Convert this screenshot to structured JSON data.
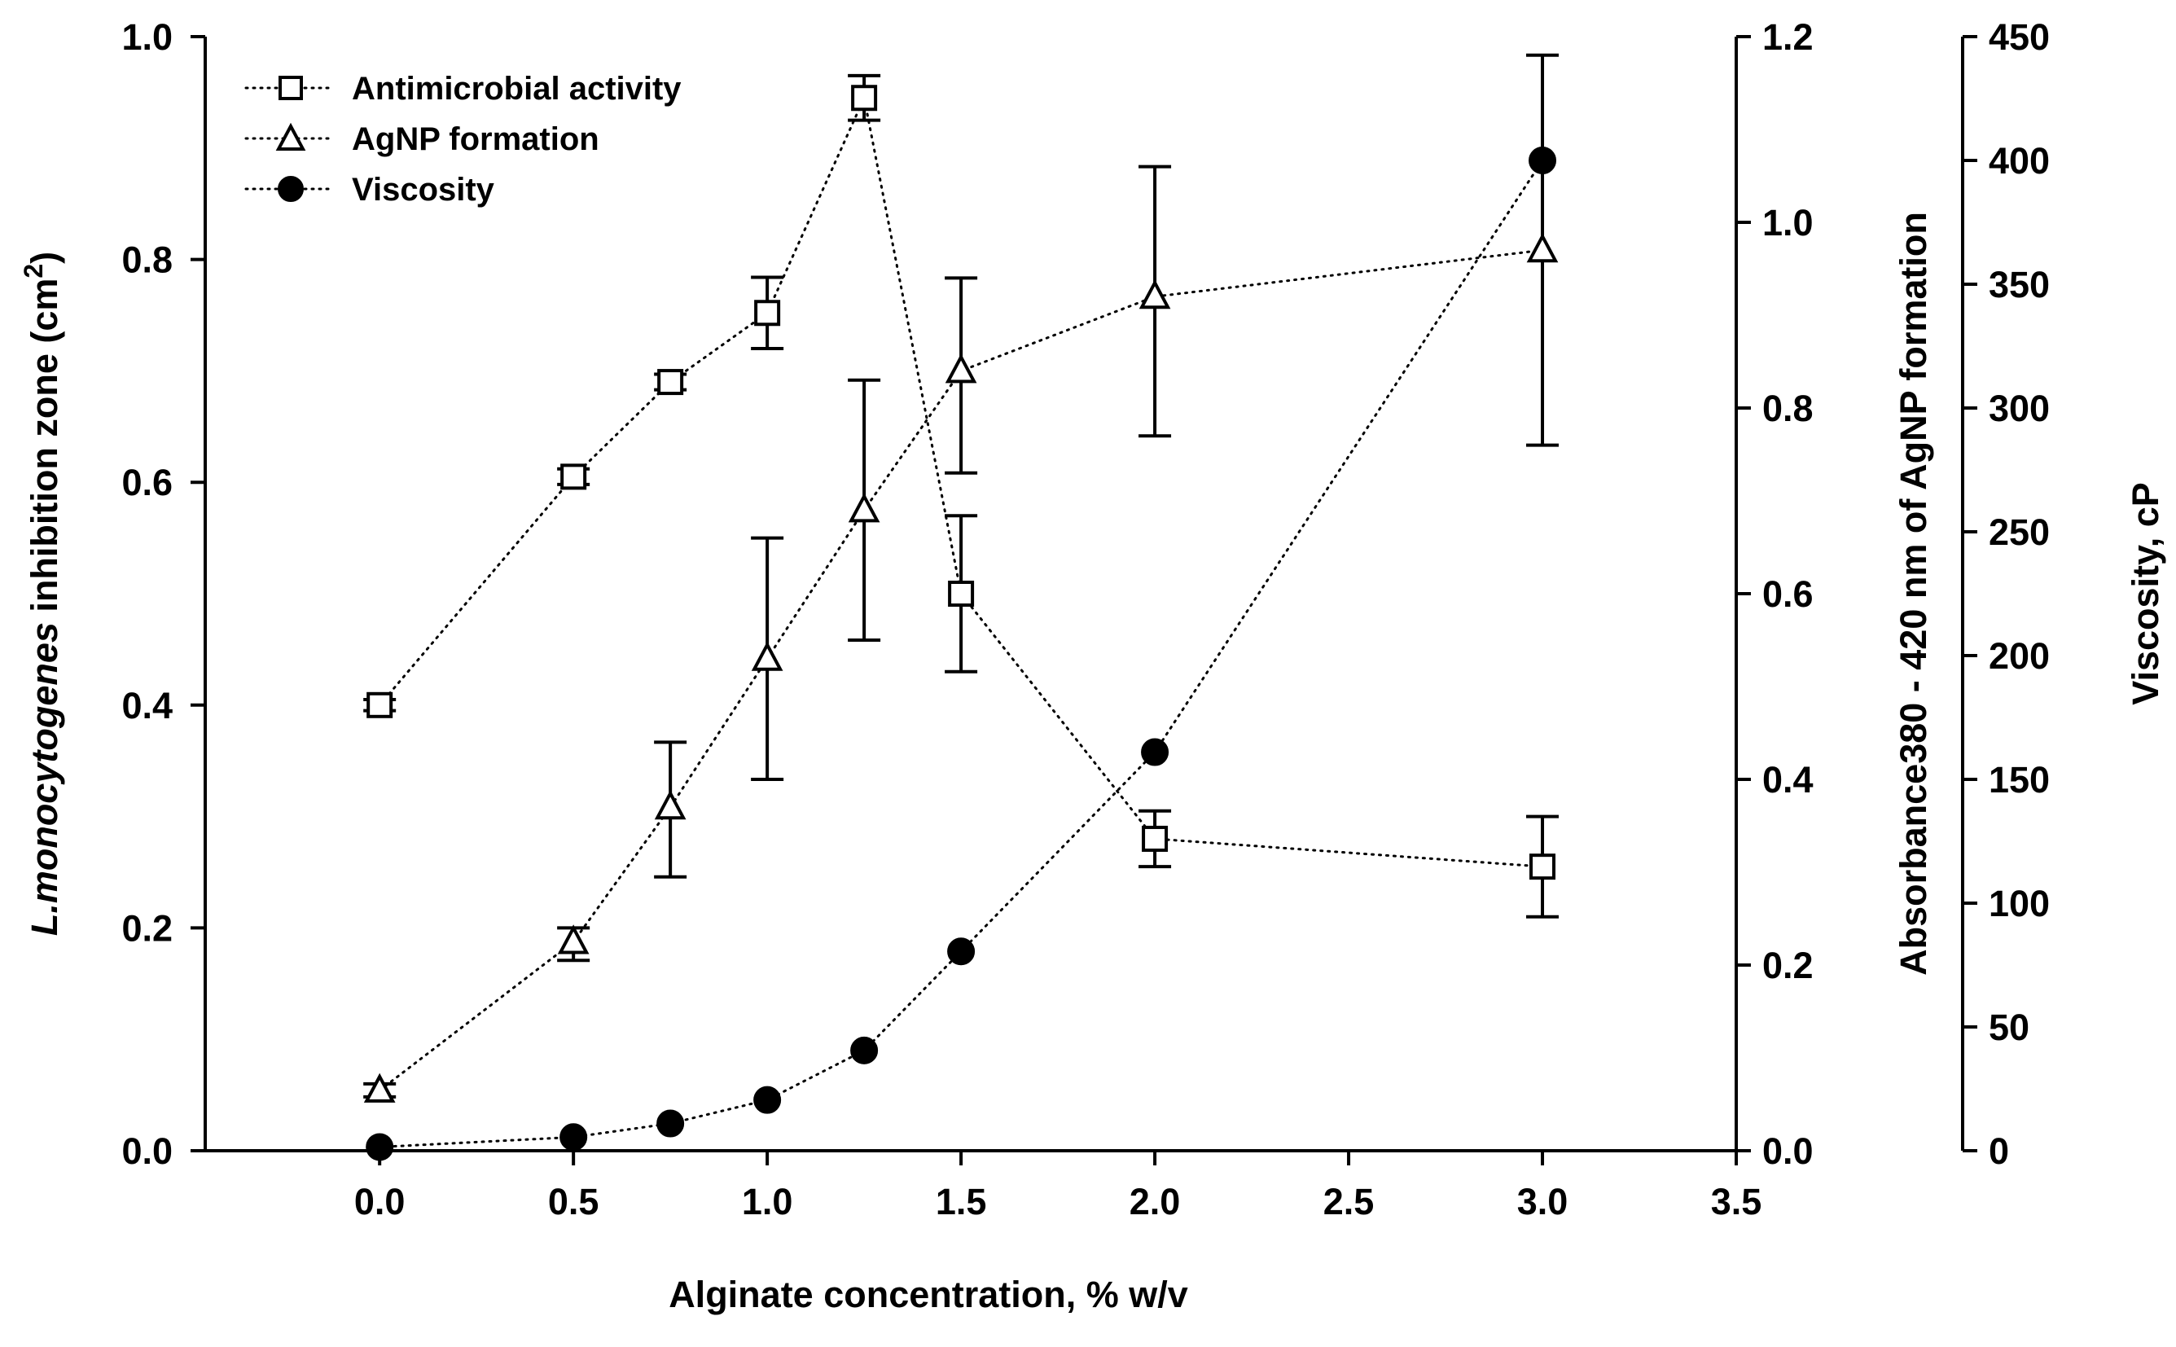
{
  "chart_data": {
    "type": "line",
    "x": [
      0.0,
      0.5,
      0.75,
      1.0,
      1.25,
      1.5,
      2.0,
      3.0
    ],
    "xlim": [
      -0.45,
      3.5
    ],
    "x_ticks": [
      "0.0",
      "0.5",
      "1.0",
      "1.5",
      "2.0",
      "2.5",
      "3.0",
      "3.5"
    ],
    "x_tick_values": [
      0.0,
      0.5,
      1.0,
      1.5,
      2.0,
      2.5,
      3.0,
      3.5
    ],
    "xlabel": "Alginate concentration, % w/v",
    "axes": {
      "left": {
        "label_italic": "L.monocytogenes",
        "label_rest": " inhibition zone (cm",
        "label_sup": "2",
        "label_end": ")",
        "ylim": [
          0,
          1.0
        ],
        "ticks": [
          "0.0",
          "0.2",
          "0.4",
          "0.6",
          "0.8",
          "1.0"
        ],
        "tick_values": [
          0,
          0.2,
          0.4,
          0.6,
          0.8,
          1.0
        ]
      },
      "right1": {
        "label": "Absorbance380 - 420 nm of AgNP formation",
        "ylim": [
          0,
          1.2
        ],
        "ticks": [
          "0.0",
          "0.2",
          "0.4",
          "0.6",
          "0.8",
          "1.0",
          "1.2"
        ],
        "tick_values": [
          0,
          0.2,
          0.4,
          0.6,
          0.8,
          1.0,
          1.2
        ]
      },
      "right2": {
        "label": "Viscosity, cP",
        "ylim": [
          0,
          450
        ],
        "ticks": [
          "0",
          "50",
          "100",
          "150",
          "200",
          "250",
          "300",
          "350",
          "400",
          "450"
        ],
        "tick_values": [
          0,
          50,
          100,
          150,
          200,
          250,
          300,
          350,
          400,
          450
        ]
      }
    },
    "series": [
      {
        "name": "Antimicrobial activity",
        "axis": "left",
        "marker": "open-square",
        "values": [
          0.4,
          0.605,
          0.69,
          0.752,
          0.945,
          0.5,
          0.28,
          0.255
        ],
        "err_low": [
          0.005,
          0.007,
          0.007,
          0.032,
          0.02,
          0.07,
          0.025,
          0.045
        ],
        "err_high": [
          0.005,
          0.007,
          0.007,
          0.032,
          0.02,
          0.07,
          0.025,
          0.045
        ]
      },
      {
        "name": "AgNP formation",
        "axis": "right1",
        "marker": "open-triangle",
        "values": [
          0.065,
          0.225,
          0.37,
          0.53,
          0.69,
          0.84,
          0.92,
          0.97
        ],
        "err_low": [
          0.007,
          0.02,
          0.075,
          0.13,
          0.14,
          0.11,
          0.15,
          0.21
        ],
        "err_high": [
          0.007,
          0.015,
          0.07,
          0.13,
          0.14,
          0.1,
          0.14,
          0.21
        ]
      },
      {
        "name": "Viscosity",
        "axis": "right2",
        "marker": "filled-circle",
        "values": [
          1.5,
          5.5,
          11,
          20.5,
          40.5,
          80.5,
          161,
          400
        ],
        "err_low": [
          0,
          0,
          0,
          0,
          0,
          0,
          0,
          0
        ],
        "err_high": [
          0,
          0,
          0,
          0,
          0,
          0,
          0,
          0
        ]
      }
    ],
    "legend": {
      "position": "top-left"
    }
  }
}
